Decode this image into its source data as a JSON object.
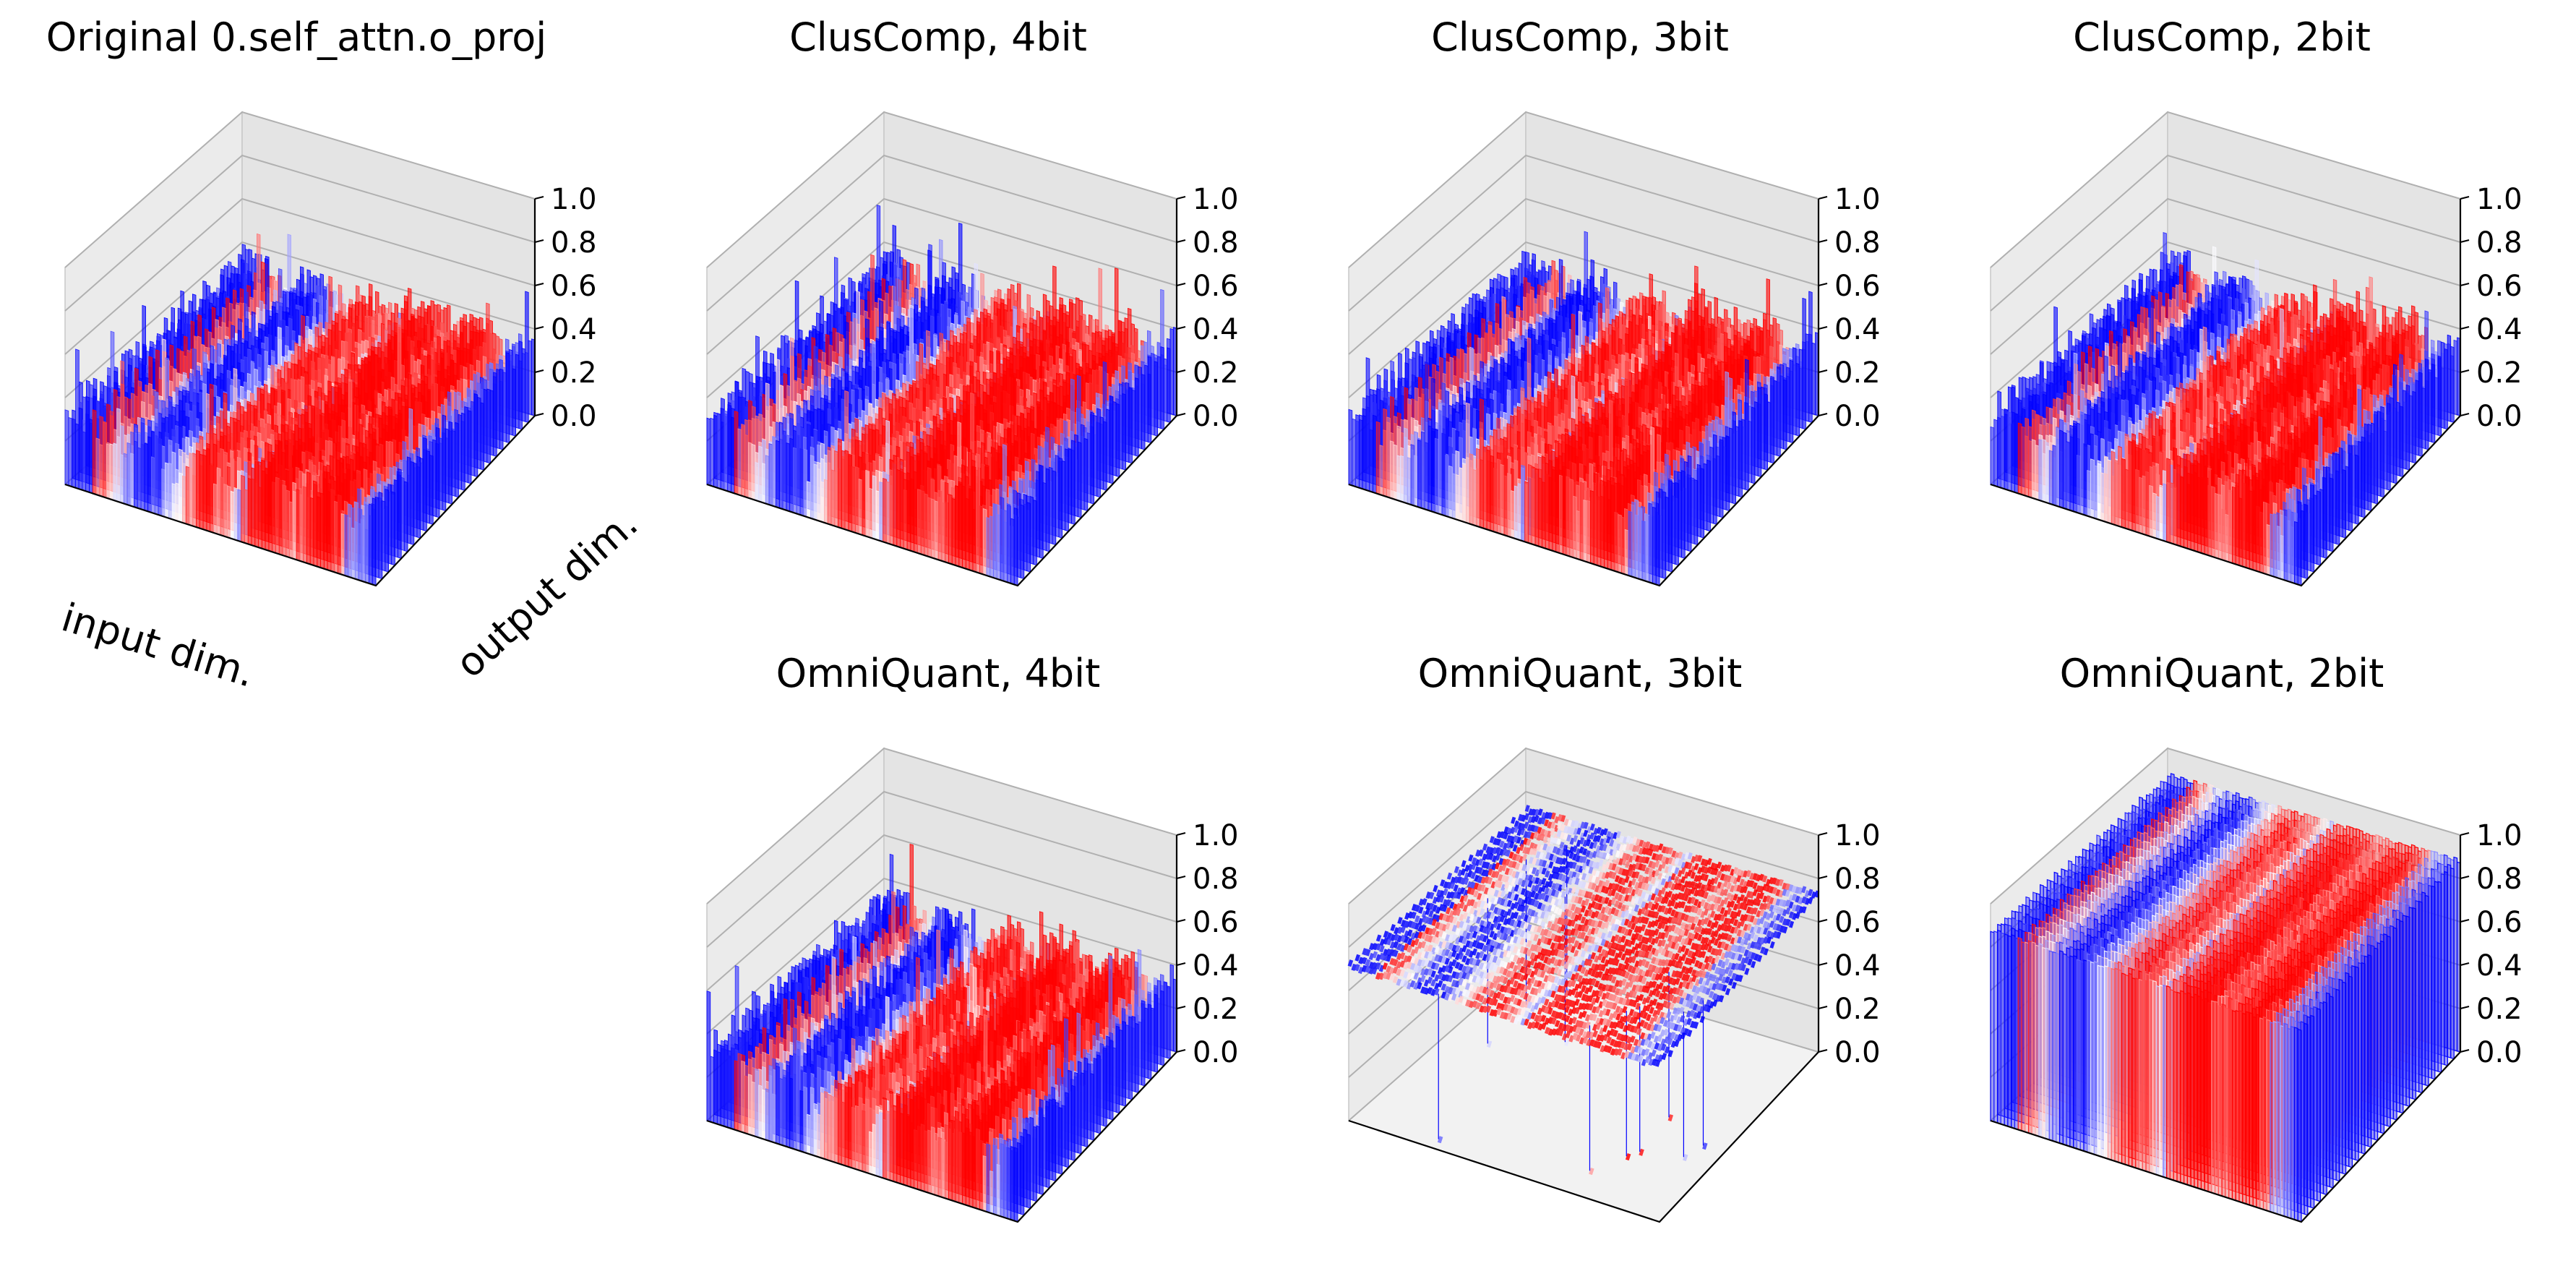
{
  "figure": {
    "xlabel": "input dim.",
    "ylabel": "output dim."
  },
  "colors": {
    "positive": "#ff0000",
    "negative": "#0000ff",
    "neutral": "#ffffff",
    "pane": "#f2f2f2",
    "grid": "#b0b0b0"
  },
  "chart_data": [
    {
      "type": "surface3d",
      "title": "Original 0.self_attn.o_proj",
      "zlim": [
        0,
        1
      ],
      "zticks": [
        "0.0",
        "0.2",
        "0.4",
        "0.6",
        "0.8",
        "1.0"
      ],
      "xlabel": "input dim.",
      "ylabel": "output dim.",
      "colormap": "bwr",
      "surface_mean": 0.22,
      "surface_max": 0.6,
      "mode": "normal"
    },
    {
      "type": "surface3d",
      "title": "ClusComp, 4bit",
      "zlim": [
        0,
        1
      ],
      "zticks": [
        "0.0",
        "0.2",
        "0.4",
        "0.6",
        "0.8",
        "1.0"
      ],
      "colormap": "bwr",
      "surface_mean": 0.22,
      "surface_max": 0.6,
      "mode": "normal"
    },
    {
      "type": "surface3d",
      "title": "ClusComp, 3bit",
      "zlim": [
        0,
        1
      ],
      "zticks": [
        "0.0",
        "0.2",
        "0.4",
        "0.6",
        "0.8",
        "1.0"
      ],
      "colormap": "bwr",
      "surface_mean": 0.22,
      "surface_max": 0.6,
      "mode": "normal"
    },
    {
      "type": "surface3d",
      "title": "ClusComp, 2bit",
      "zlim": [
        0,
        1
      ],
      "zticks": [
        "0.0",
        "0.2",
        "0.4",
        "0.6",
        "0.8",
        "1.0"
      ],
      "colormap": "bwr",
      "surface_mean": 0.22,
      "surface_max": 0.6,
      "mode": "normal"
    },
    {
      "type": "surface3d",
      "title": "OmniQuant, 4bit",
      "zlim": [
        0,
        1
      ],
      "zticks": [
        "0.0",
        "0.2",
        "0.4",
        "0.6",
        "0.8",
        "1.0"
      ],
      "colormap": "bwr",
      "surface_mean": 0.22,
      "surface_max": 0.6,
      "mode": "normal"
    },
    {
      "type": "surface3d",
      "title": "OmniQuant, 3bit",
      "zlim": [
        0,
        1
      ],
      "zticks": [
        "0.0",
        "0.2",
        "0.4",
        "0.6",
        "0.8",
        "1.0"
      ],
      "colormap": "bwr",
      "surface_mean": 0.72,
      "surface_max": 0.75,
      "mode": "collapsed_high_with_outliers"
    },
    {
      "type": "surface3d",
      "title": "OmniQuant, 2bit",
      "zlim": [
        0,
        1
      ],
      "zticks": [
        "0.0",
        "0.2",
        "0.4",
        "0.6",
        "0.8",
        "1.0"
      ],
      "colormap": "bwr",
      "surface_mean": 0.88,
      "surface_max": 0.9,
      "mode": "collapsed_saturated"
    }
  ]
}
